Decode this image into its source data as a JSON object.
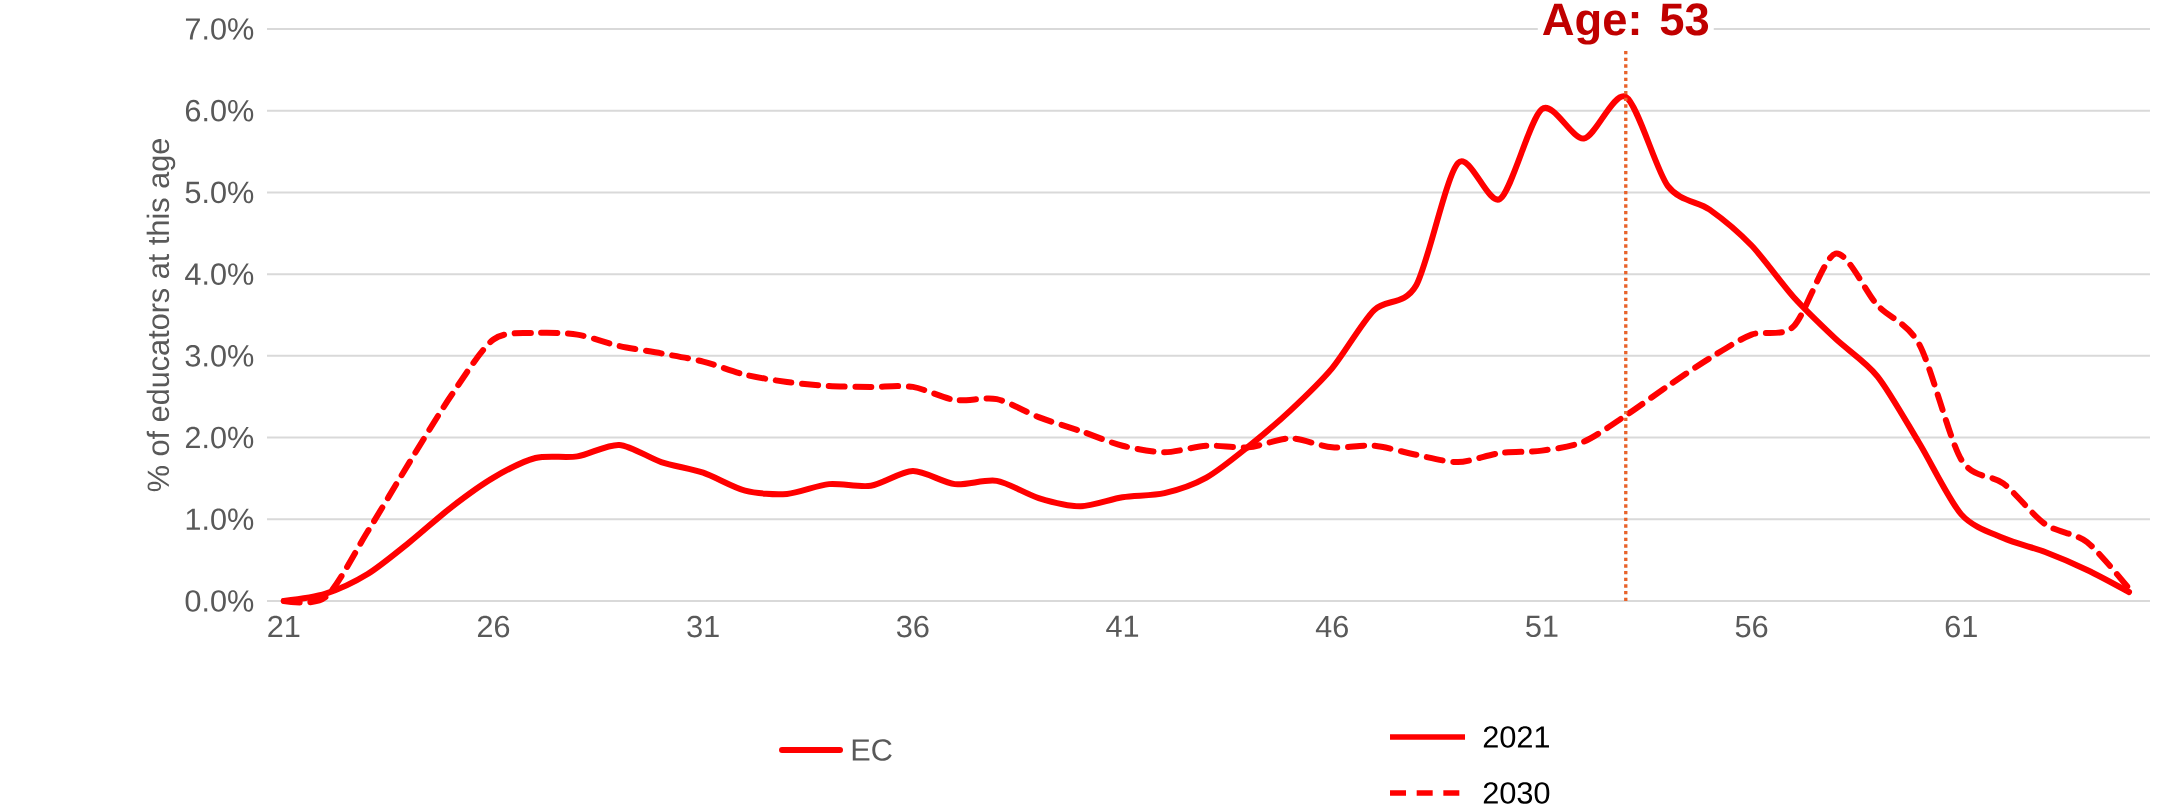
{
  "chart_data": {
    "type": "line",
    "ylabel": "% of educators at this age",
    "x": [
      21,
      22,
      23,
      24,
      25,
      26,
      27,
      28,
      29,
      30,
      31,
      32,
      33,
      34,
      35,
      36,
      37,
      38,
      39,
      40,
      41,
      42,
      43,
      44,
      45,
      46,
      47,
      48,
      49,
      50,
      51,
      52,
      53,
      54,
      55,
      56,
      57,
      58,
      59,
      60,
      61,
      62,
      63,
      64,
      65
    ],
    "series": [
      {
        "name": "2021",
        "color": "#ff0000",
        "line_style": "solid",
        "values": [
          0.0,
          0.09,
          0.33,
          0.72,
          1.15,
          1.51,
          1.75,
          1.77,
          1.91,
          1.7,
          1.57,
          1.35,
          1.31,
          1.43,
          1.41,
          1.59,
          1.43,
          1.47,
          1.26,
          1.16,
          1.27,
          1.32,
          1.51,
          1.89,
          2.33,
          2.85,
          3.56,
          3.86,
          5.36,
          4.92,
          6.02,
          5.66,
          6.17,
          5.08,
          4.79,
          4.35,
          3.72,
          3.21,
          2.75,
          1.93,
          1.06,
          0.77,
          0.6,
          0.38,
          0.11
        ]
      },
      {
        "name": "2030",
        "color": "#ff0000",
        "line_style": "dashed",
        "values": [
          0.0,
          0.05,
          0.85,
          1.7,
          2.52,
          3.2,
          3.28,
          3.26,
          3.12,
          3.03,
          2.93,
          2.77,
          2.68,
          2.63,
          2.62,
          2.62,
          2.46,
          2.47,
          2.25,
          2.08,
          1.9,
          1.82,
          1.9,
          1.88,
          1.99,
          1.88,
          1.9,
          1.79,
          1.7,
          1.81,
          1.84,
          1.95,
          2.27,
          2.63,
          2.97,
          3.26,
          3.36,
          4.25,
          3.62,
          3.14,
          1.73,
          1.44,
          0.94,
          0.72,
          0.15
        ]
      }
    ],
    "xlim": [
      20.6,
      65.5
    ],
    "xticks": [
      21,
      26,
      31,
      36,
      41,
      46,
      51,
      56,
      61
    ],
    "ylim": [
      0,
      7
    ],
    "yticks": [
      {
        "value": 0,
        "label": "0.0%"
      },
      {
        "value": 1,
        "label": "1.0%"
      },
      {
        "value": 2,
        "label": "2.0%"
      },
      {
        "value": 3,
        "label": "3.0%"
      },
      {
        "value": 4,
        "label": "4.0%"
      },
      {
        "value": 5,
        "label": "5.0%"
      },
      {
        "value": 6,
        "label": "6.0%"
      },
      {
        "value": 7,
        "label": "7.0%"
      }
    ],
    "grid": "y",
    "legend": "bottom",
    "legend_title": "EC",
    "ref_lines": [
      {
        "axis": "x",
        "value": 53,
        "label": "Age: 53",
        "color": "#e8622a",
        "line_style": "dotted"
      }
    ]
  }
}
